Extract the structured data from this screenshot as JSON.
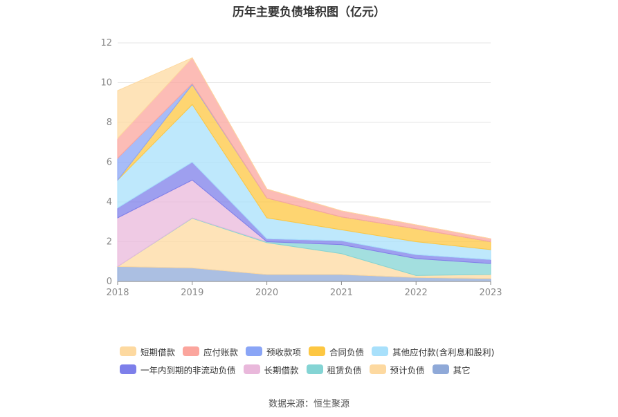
{
  "chart_data": {
    "type": "area",
    "stacked": true,
    "title": "历年主要负债堆积图（亿元）",
    "x": [
      "2018",
      "2019",
      "2020",
      "2021",
      "2022",
      "2023"
    ],
    "ylim": [
      0,
      12
    ],
    "yticks": [
      "0",
      "2",
      "4",
      "6",
      "8",
      "10",
      "12"
    ],
    "grid": true,
    "legend_position": "bottom",
    "series": [
      {
        "name": "其它",
        "color": "#8fa9d8",
        "values": [
          0.75,
          0.68,
          0.35,
          0.35,
          0.2,
          0.15
        ]
      },
      {
        "name": "预计负债",
        "color": "#fdd9a0",
        "values": [
          0.0,
          2.5,
          1.6,
          1.05,
          0.1,
          0.2
        ]
      },
      {
        "name": "租赁负债",
        "color": "#84d4d4",
        "values": [
          0.0,
          0.02,
          0.05,
          0.45,
          0.85,
          0.55
        ]
      },
      {
        "name": "长期借款",
        "color": "#e9b8db",
        "values": [
          2.45,
          1.9,
          0.0,
          0.0,
          0.0,
          0.0
        ]
      },
      {
        "name": "一年内到期的非流动负债",
        "color": "#7d7fea",
        "values": [
          0.5,
          0.9,
          0.15,
          0.2,
          0.2,
          0.2
        ]
      },
      {
        "name": "其他应付款(含利息和股利)",
        "color": "#a8e0fb",
        "values": [
          1.4,
          2.9,
          1.05,
          0.55,
          0.65,
          0.5
        ]
      },
      {
        "name": "合同负债",
        "color": "#fdc742",
        "values": [
          0.0,
          1.0,
          1.0,
          0.65,
          0.65,
          0.4
        ]
      },
      {
        "name": "预收款项",
        "color": "#8aa5f6",
        "values": [
          1.1,
          0.05,
          0.0,
          0.0,
          0.0,
          0.0
        ]
      },
      {
        "name": "应付账款",
        "color": "#fba59d",
        "values": [
          1.0,
          1.3,
          0.45,
          0.3,
          0.2,
          0.15
        ]
      },
      {
        "name": "短期借款",
        "color": "#fdd9a0",
        "values": [
          2.4,
          0.0,
          0.0,
          0.0,
          0.0,
          0.0
        ]
      }
    ]
  },
  "legend": {
    "row1": [
      {
        "name": "短期借款",
        "color": "#fdd9a0"
      },
      {
        "name": "应付账款",
        "color": "#fba59d"
      },
      {
        "name": "预收款项",
        "color": "#8aa5f6"
      },
      {
        "name": "合同负债",
        "color": "#fdc742"
      },
      {
        "name": "其他应付款(含利息和股利)",
        "color": "#a8e0fb"
      }
    ],
    "row2": [
      {
        "name": "一年内到期的非流动负债",
        "color": "#7d7fea"
      },
      {
        "name": "长期借款",
        "color": "#e9b8db"
      },
      {
        "name": "租赁负债",
        "color": "#84d4d4"
      },
      {
        "name": "预计负债",
        "color": "#fdd9a0"
      },
      {
        "name": "其它",
        "color": "#8fa9d8"
      }
    ]
  },
  "source": "数据来源：恒生聚源"
}
